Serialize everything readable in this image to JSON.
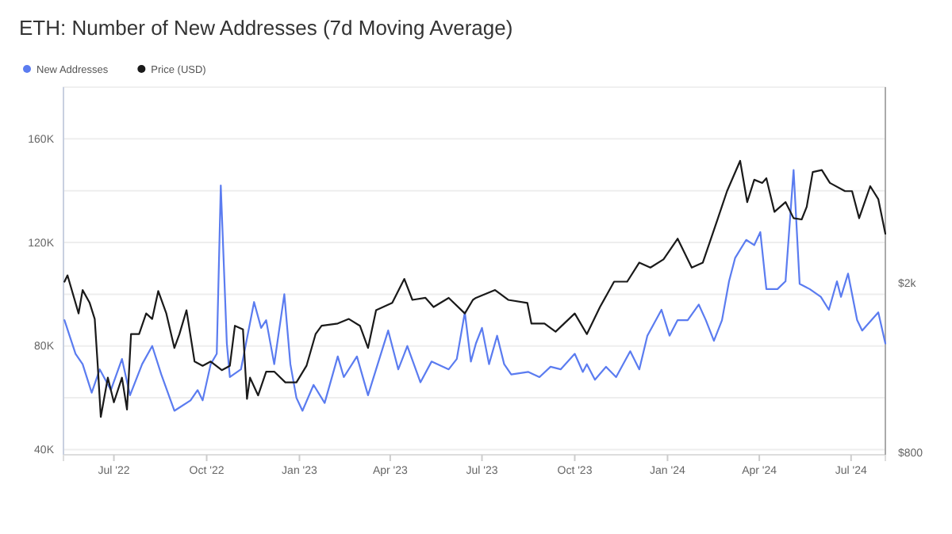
{
  "chart_data": {
    "type": "line",
    "title": "ETH: Number of New Addresses (7d Moving Average)",
    "xlim": [
      "2022-05-12",
      "2024-08-04"
    ],
    "xticks": [
      {
        "value": "2022-07-01",
        "label": "Jul '22"
      },
      {
        "value": "2022-10-01",
        "label": "Oct '22"
      },
      {
        "value": "2023-01-01",
        "label": "Jan '23"
      },
      {
        "value": "2023-04-01",
        "label": "Apr '23"
      },
      {
        "value": "2023-07-01",
        "label": "Jul '23"
      },
      {
        "value": "2023-10-01",
        "label": "Oct '23"
      },
      {
        "value": "2024-01-01",
        "label": "Jan '24"
      },
      {
        "value": "2024-04-01",
        "label": "Apr '24"
      },
      {
        "value": "2024-07-01",
        "label": "Jul '24"
      }
    ],
    "ylim": [
      38000,
      180000
    ],
    "yticks": [
      {
        "value": 40000,
        "label": "40K"
      },
      {
        "value": 60000,
        "label": null
      },
      {
        "value": 80000,
        "label": "80K"
      },
      {
        "value": 100000,
        "label": null
      },
      {
        "value": 120000,
        "label": "120K"
      },
      {
        "value": 140000,
        "label": null
      },
      {
        "value": 160000,
        "label": "160K"
      }
    ],
    "y2lim": [
      790,
      5800
    ],
    "y2ticks": [
      {
        "value": 800,
        "label": "$800"
      },
      {
        "value": 2000,
        "label": "$2k"
      }
    ],
    "log": "y2",
    "grid": "y",
    "legend": "top left",
    "marker": "none",
    "line_style": "solid",
    "series": [
      {
        "name": "New Addresses",
        "color": "#5b7cf0",
        "x": [
          "2022-05-13",
          "2022-05-24",
          "2022-05-31",
          "2022-06-09",
          "2022-06-17",
          "2022-06-28",
          "2022-07-09",
          "2022-07-17",
          "2022-07-29",
          "2022-08-08",
          "2022-08-17",
          "2022-08-30",
          "2022-09-15",
          "2022-09-22",
          "2022-09-27",
          "2022-10-05",
          "2022-10-11",
          "2022-10-15",
          "2022-10-21",
          "2022-10-24",
          "2022-11-04",
          "2022-11-17",
          "2022-11-24",
          "2022-11-29",
          "2022-12-07",
          "2022-12-17",
          "2022-12-23",
          "2022-12-29",
          "2023-01-04",
          "2023-01-15",
          "2023-01-26",
          "2023-02-08",
          "2023-02-14",
          "2023-02-27",
          "2023-03-10",
          "2023-03-30",
          "2023-04-09",
          "2023-04-18",
          "2023-05-01",
          "2023-05-12",
          "2023-05-29",
          "2023-06-06",
          "2023-06-14",
          "2023-06-20",
          "2023-06-25",
          "2023-07-01",
          "2023-07-08",
          "2023-07-16",
          "2023-07-23",
          "2023-07-30",
          "2023-08-16",
          "2023-08-27",
          "2023-09-07",
          "2023-09-17",
          "2023-10-01",
          "2023-10-09",
          "2023-10-13",
          "2023-10-21",
          "2023-11-01",
          "2023-11-11",
          "2023-11-25",
          "2023-12-04",
          "2023-12-12",
          "2023-12-26",
          "2024-01-03",
          "2024-01-11",
          "2024-01-21",
          "2024-02-01",
          "2024-02-08",
          "2024-02-16",
          "2024-02-24",
          "2024-03-02",
          "2024-03-08",
          "2024-03-19",
          "2024-03-27",
          "2024-04-02",
          "2024-04-08",
          "2024-04-19",
          "2024-04-27",
          "2024-05-05",
          "2024-05-11",
          "2024-05-21",
          "2024-06-01",
          "2024-06-09",
          "2024-06-17",
          "2024-06-21",
          "2024-06-28",
          "2024-07-07",
          "2024-07-12",
          "2024-07-28",
          "2024-08-04"
        ],
        "values": [
          90000,
          77000,
          73000,
          62000,
          71000,
          63000,
          75000,
          61000,
          73000,
          80000,
          69000,
          55000,
          59000,
          63000,
          59000,
          73000,
          77000,
          142000,
          81000,
          68000,
          71000,
          97000,
          87000,
          90000,
          73000,
          100000,
          73000,
          60000,
          55000,
          65000,
          58000,
          76000,
          68000,
          76000,
          61000,
          86000,
          71000,
          80000,
          66000,
          74000,
          71000,
          75000,
          93000,
          74000,
          81000,
          87000,
          73000,
          84000,
          73000,
          69000,
          70000,
          68000,
          72000,
          71000,
          77000,
          70000,
          73000,
          67000,
          72000,
          68000,
          78000,
          71000,
          84000,
          94000,
          84000,
          90000,
          90000,
          96000,
          90000,
          82000,
          90000,
          105000,
          114000,
          121000,
          119000,
          124000,
          102000,
          102000,
          105000,
          148000,
          104000,
          102000,
          99000,
          94000,
          105000,
          99000,
          108000,
          90000,
          86000,
          93000,
          81000
        ]
      },
      {
        "name": "Price (USD)",
        "color": "#1a1a1a",
        "axis": "y2",
        "x": [
          "2022-05-13",
          "2022-05-16",
          "2022-05-27",
          "2022-05-31",
          "2022-06-07",
          "2022-06-12",
          "2022-06-15",
          "2022-06-18",
          "2022-06-25",
          "2022-07-01",
          "2022-07-09",
          "2022-07-14",
          "2022-07-18",
          "2022-07-26",
          "2022-08-02",
          "2022-08-08",
          "2022-08-14",
          "2022-08-22",
          "2022-08-30",
          "2022-09-04",
          "2022-09-11",
          "2022-09-19",
          "2022-09-27",
          "2022-10-05",
          "2022-10-16",
          "2022-10-24",
          "2022-10-29",
          "2022-11-06",
          "2022-11-10",
          "2022-11-13",
          "2022-11-21",
          "2022-11-29",
          "2022-12-07",
          "2022-12-18",
          "2022-12-29",
          "2023-01-08",
          "2023-01-17",
          "2023-01-23",
          "2023-02-08",
          "2023-02-19",
          "2023-03-02",
          "2023-03-10",
          "2023-03-18",
          "2023-04-03",
          "2023-04-15",
          "2023-04-23",
          "2023-05-06",
          "2023-05-14",
          "2023-05-29",
          "2023-06-14",
          "2023-06-22",
          "2023-06-25",
          "2023-07-14",
          "2023-07-27",
          "2023-08-15",
          "2023-08-19",
          "2023-09-01",
          "2023-09-12",
          "2023-10-01",
          "2023-10-13",
          "2023-10-26",
          "2023-11-09",
          "2023-11-22",
          "2023-12-04",
          "2023-12-15",
          "2023-12-28",
          "2024-01-11",
          "2024-01-25",
          "2024-02-05",
          "2024-02-20",
          "2024-02-29",
          "2024-03-13",
          "2024-03-20",
          "2024-03-27",
          "2024-04-04",
          "2024-04-08",
          "2024-04-16",
          "2024-04-27",
          "2024-05-05",
          "2024-05-13",
          "2024-05-18",
          "2024-05-24",
          "2024-06-02",
          "2024-06-10",
          "2024-06-25",
          "2024-07-02",
          "2024-07-09",
          "2024-07-20",
          "2024-07-28",
          "2024-08-04"
        ],
        "values": [
          2020,
          2090,
          1700,
          1930,
          1800,
          1650,
          1280,
          970,
          1200,
          1050,
          1200,
          1010,
          1520,
          1520,
          1700,
          1650,
          1920,
          1700,
          1410,
          1520,
          1730,
          1310,
          1280,
          1310,
          1250,
          1280,
          1590,
          1560,
          1070,
          1200,
          1090,
          1240,
          1240,
          1170,
          1170,
          1280,
          1520,
          1590,
          1610,
          1650,
          1590,
          1410,
          1730,
          1800,
          2050,
          1830,
          1850,
          1760,
          1850,
          1700,
          1830,
          1850,
          1930,
          1830,
          1800,
          1610,
          1610,
          1540,
          1700,
          1520,
          1760,
          2020,
          2020,
          2240,
          2180,
          2280,
          2550,
          2180,
          2240,
          2850,
          3300,
          3890,
          3110,
          3510,
          3450,
          3540,
          2950,
          3110,
          2850,
          2830,
          3030,
          3660,
          3700,
          3450,
          3300,
          3300,
          2850,
          3390,
          3160,
          2620
        ]
      }
    ]
  }
}
